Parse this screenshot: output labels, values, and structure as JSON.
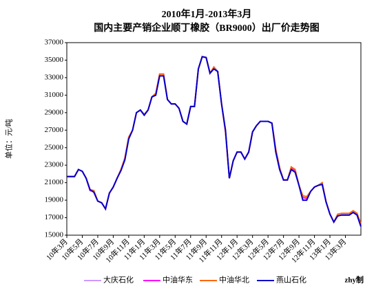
{
  "chart_data": {
    "type": "line",
    "title": "2010年1月-2013年3月",
    "subtitle": "国内主要产销企业顺丁橡胶（BR9000）出厂价走势图",
    "y_label": "单位：元/吨",
    "credit": "zhy制",
    "categories": [
      "10年3月",
      null,
      null,
      null,
      "10年5月",
      null,
      null,
      null,
      "10年7月",
      null,
      null,
      null,
      "10年9月",
      null,
      null,
      null,
      "10年11月",
      null,
      null,
      null,
      "11年1月",
      null,
      null,
      null,
      "11年3月",
      null,
      null,
      null,
      "11年5月",
      null,
      null,
      null,
      "11年7月",
      null,
      null,
      null,
      "11年9月",
      null,
      null,
      null,
      "11年11月",
      null,
      null,
      null,
      "12年1月",
      null,
      null,
      null,
      "12年3月",
      null,
      null,
      null,
      "12年5月",
      null,
      null,
      null,
      "12年7月",
      null,
      null,
      null,
      "12年9月",
      null,
      null,
      null,
      "12年11月",
      null,
      null,
      null,
      "13年1月",
      null,
      null,
      null,
      "13年3月",
      null,
      null,
      null,
      null
    ],
    "series": [
      {
        "name": "大庆石化",
        "color": "#cc99ff",
        "values": [
          21700,
          21700,
          21700,
          22500,
          22300,
          21500,
          20200,
          19900,
          18900,
          18700,
          18000,
          19800,
          20500,
          21500,
          22400,
          23600,
          26000,
          27000,
          29000,
          29300,
          28700,
          29300,
          30800,
          31000,
          33200,
          33200,
          30500,
          30000,
          30000,
          29500,
          28000,
          27700,
          29700,
          29700,
          34000,
          35400,
          35300,
          33500,
          34000,
          33700,
          30000,
          27000,
          21500,
          23500,
          24500,
          24500,
          23700,
          24500,
          26800,
          27500,
          28000,
          28000,
          28000,
          27800,
          24500,
          22500,
          21300,
          21300,
          22500,
          22200,
          20700,
          19000,
          19000,
          20000,
          20500,
          20700,
          20800,
          18800,
          17400,
          16500,
          17200,
          17300,
          17300,
          17300,
          17600,
          17300,
          16000
        ]
      },
      {
        "name": "中油华东",
        "color": "#ff00ff",
        "values": [
          21700,
          21700,
          21700,
          22500,
          22300,
          21500,
          20100,
          20000,
          18900,
          18700,
          18000,
          19800,
          20500,
          21500,
          22500,
          23800,
          26200,
          27000,
          29000,
          29300,
          28800,
          29300,
          30800,
          31200,
          33400,
          33400,
          30500,
          30000,
          30000,
          29500,
          28000,
          27700,
          29700,
          29700,
          34000,
          35400,
          35300,
          33500,
          34200,
          33700,
          30000,
          26800,
          21500,
          23500,
          24500,
          24500,
          23700,
          24500,
          26800,
          27500,
          28000,
          28000,
          28000,
          27800,
          24800,
          22700,
          21300,
          21300,
          22700,
          22400,
          20700,
          19300,
          19200,
          20000,
          20500,
          20700,
          20900,
          18800,
          17400,
          16500,
          17200,
          17300,
          17300,
          17300,
          17600,
          17300,
          16000
        ]
      },
      {
        "name": "中油华北",
        "color": "#ff6600",
        "values": [
          21700,
          21700,
          21700,
          22500,
          22300,
          21500,
          20200,
          20100,
          18900,
          18700,
          18000,
          19800,
          20500,
          21500,
          22500,
          23800,
          26200,
          27000,
          29000,
          29300,
          28800,
          29300,
          30800,
          31200,
          33400,
          33400,
          30500,
          30000,
          30000,
          29500,
          28000,
          27700,
          29700,
          29700,
          34000,
          35400,
          35300,
          33500,
          34200,
          33700,
          30000,
          26800,
          21500,
          23500,
          24500,
          24500,
          23700,
          24500,
          26800,
          27500,
          28000,
          28000,
          28000,
          27800,
          24800,
          22700,
          21300,
          21300,
          22800,
          22500,
          20700,
          19500,
          19400,
          20000,
          20500,
          20700,
          21000,
          18800,
          17400,
          16500,
          17400,
          17500,
          17500,
          17500,
          17800,
          17500,
          16300
        ]
      },
      {
        "name": "燕山石化",
        "color": "#0000cc",
        "values": [
          21700,
          21700,
          21700,
          22500,
          22300,
          21500,
          20200,
          19900,
          18900,
          18700,
          18000,
          19800,
          20500,
          21500,
          22400,
          23600,
          26000,
          27000,
          29000,
          29300,
          28700,
          29300,
          30800,
          31000,
          33200,
          33200,
          30500,
          30000,
          30000,
          29500,
          28000,
          27700,
          29700,
          29700,
          34000,
          35400,
          35300,
          33500,
          34000,
          33700,
          30000,
          27000,
          21500,
          23500,
          24500,
          24500,
          23700,
          24500,
          26800,
          27500,
          28000,
          28000,
          28000,
          27800,
          24500,
          22500,
          21300,
          21300,
          22500,
          22200,
          20700,
          19000,
          19000,
          20000,
          20500,
          20700,
          20800,
          18800,
          17400,
          16500,
          17200,
          17300,
          17300,
          17300,
          17600,
          17300,
          16000
        ]
      }
    ],
    "ylim": [
      15000,
      37000
    ],
    "yticks": [
      15000,
      17000,
      19000,
      21000,
      23000,
      25000,
      27000,
      29000,
      31000,
      33000,
      35000,
      37000
    ],
    "grid": false,
    "legend": "bottom"
  }
}
